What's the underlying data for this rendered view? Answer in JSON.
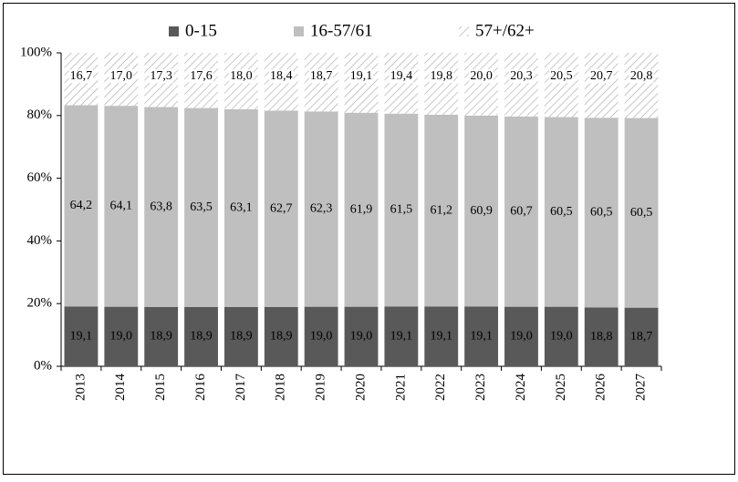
{
  "chart_data": {
    "type": "stacked_bar",
    "categories": [
      "2013",
      "2014",
      "2015",
      "2016",
      "2017",
      "2018",
      "2019",
      "2020",
      "2021",
      "2022",
      "2023",
      "2024",
      "2025",
      "2026",
      "2027"
    ],
    "series": [
      {
        "name": "0-15",
        "color": "#595959",
        "label_color": "#ffffff",
        "values": [
          19.1,
          19.0,
          18.9,
          18.9,
          18.9,
          18.9,
          19.0,
          19.0,
          19.1,
          19.1,
          19.1,
          19.0,
          19.0,
          18.8,
          18.7
        ],
        "value_labels": [
          "19,1",
          "19,0",
          "18,9",
          "18,9",
          "18,9",
          "18,9",
          "19,0",
          "19,0",
          "19,1",
          "19,1",
          "19,1",
          "19,0",
          "19,0",
          "18,8",
          "18,7"
        ]
      },
      {
        "name": "16-57/61",
        "color": "#bfbfbf",
        "label_color": "#000000",
        "values": [
          64.2,
          64.1,
          63.8,
          63.5,
          63.1,
          62.7,
          62.3,
          61.9,
          61.5,
          61.2,
          60.9,
          60.7,
          60.5,
          60.5,
          60.5
        ],
        "value_labels": [
          "64,2",
          "64,1",
          "63,8",
          "63,5",
          "63,1",
          "62,7",
          "62,3",
          "61,9",
          "61,5",
          "61,2",
          "60,9",
          "60,7",
          "60,5",
          "60,5",
          "60,5"
        ]
      },
      {
        "name": "57+/62+",
        "color": "#a6a6a6",
        "pattern": "hatch",
        "label_color": "#000000",
        "values": [
          16.7,
          17.0,
          17.3,
          17.6,
          18.0,
          18.4,
          18.7,
          19.1,
          19.4,
          19.8,
          20.0,
          20.3,
          20.5,
          20.7,
          20.8
        ],
        "value_labels": [
          "16,7",
          "17,0",
          "17,3",
          "17,6",
          "18,0",
          "18,4",
          "18,7",
          "19,1",
          "19,4",
          "19,8",
          "20,0",
          "20,3",
          "20,5",
          "20,7",
          "20,8"
        ]
      }
    ],
    "ylim": [
      0,
      100
    ],
    "yticks": [
      {
        "value": 0,
        "label": "0%"
      },
      {
        "value": 20,
        "label": "20%"
      },
      {
        "value": 40,
        "label": "40%"
      },
      {
        "value": 60,
        "label": "60%"
      },
      {
        "value": 80,
        "label": "80%"
      },
      {
        "value": 100,
        "label": "100%"
      }
    ],
    "legend": "top"
  }
}
